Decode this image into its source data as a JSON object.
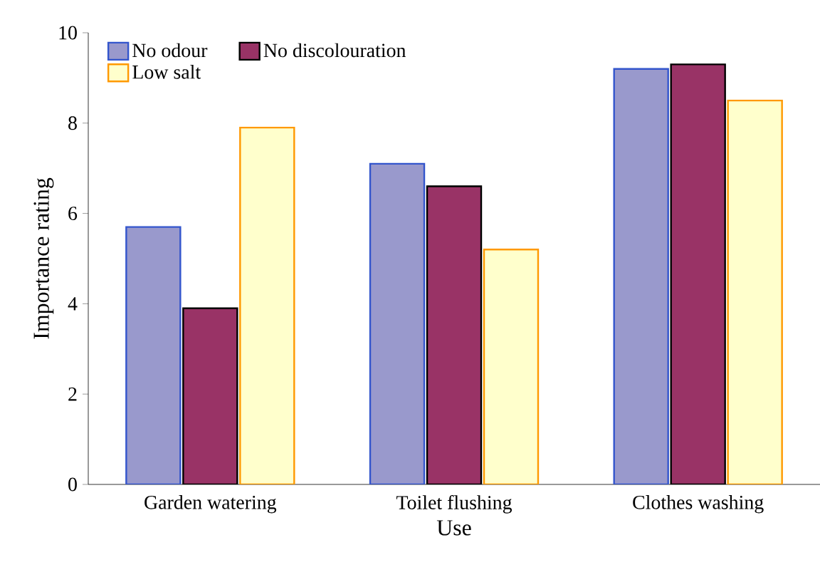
{
  "chart_data": {
    "type": "bar",
    "xlabel": "Use",
    "ylabel": "Importance rating",
    "categories": [
      "Garden watering",
      "Toilet flushing",
      "Clothes washing"
    ],
    "series": [
      {
        "name": "No odour",
        "color": "#9999cc",
        "values": [
          5.7,
          7.1,
          9.2
        ]
      },
      {
        "name": "No discolouration",
        "color": "#993366",
        "values": [
          3.9,
          6.6,
          9.3
        ]
      },
      {
        "name": "Low salt",
        "color": "#ffffcc",
        "values": [
          7.9,
          5.2,
          8.5
        ]
      }
    ],
    "ylim": [
      0,
      10
    ],
    "yticks": [
      0,
      2,
      4,
      6,
      8,
      10
    ],
    "grid": false,
    "legend": "top left"
  }
}
